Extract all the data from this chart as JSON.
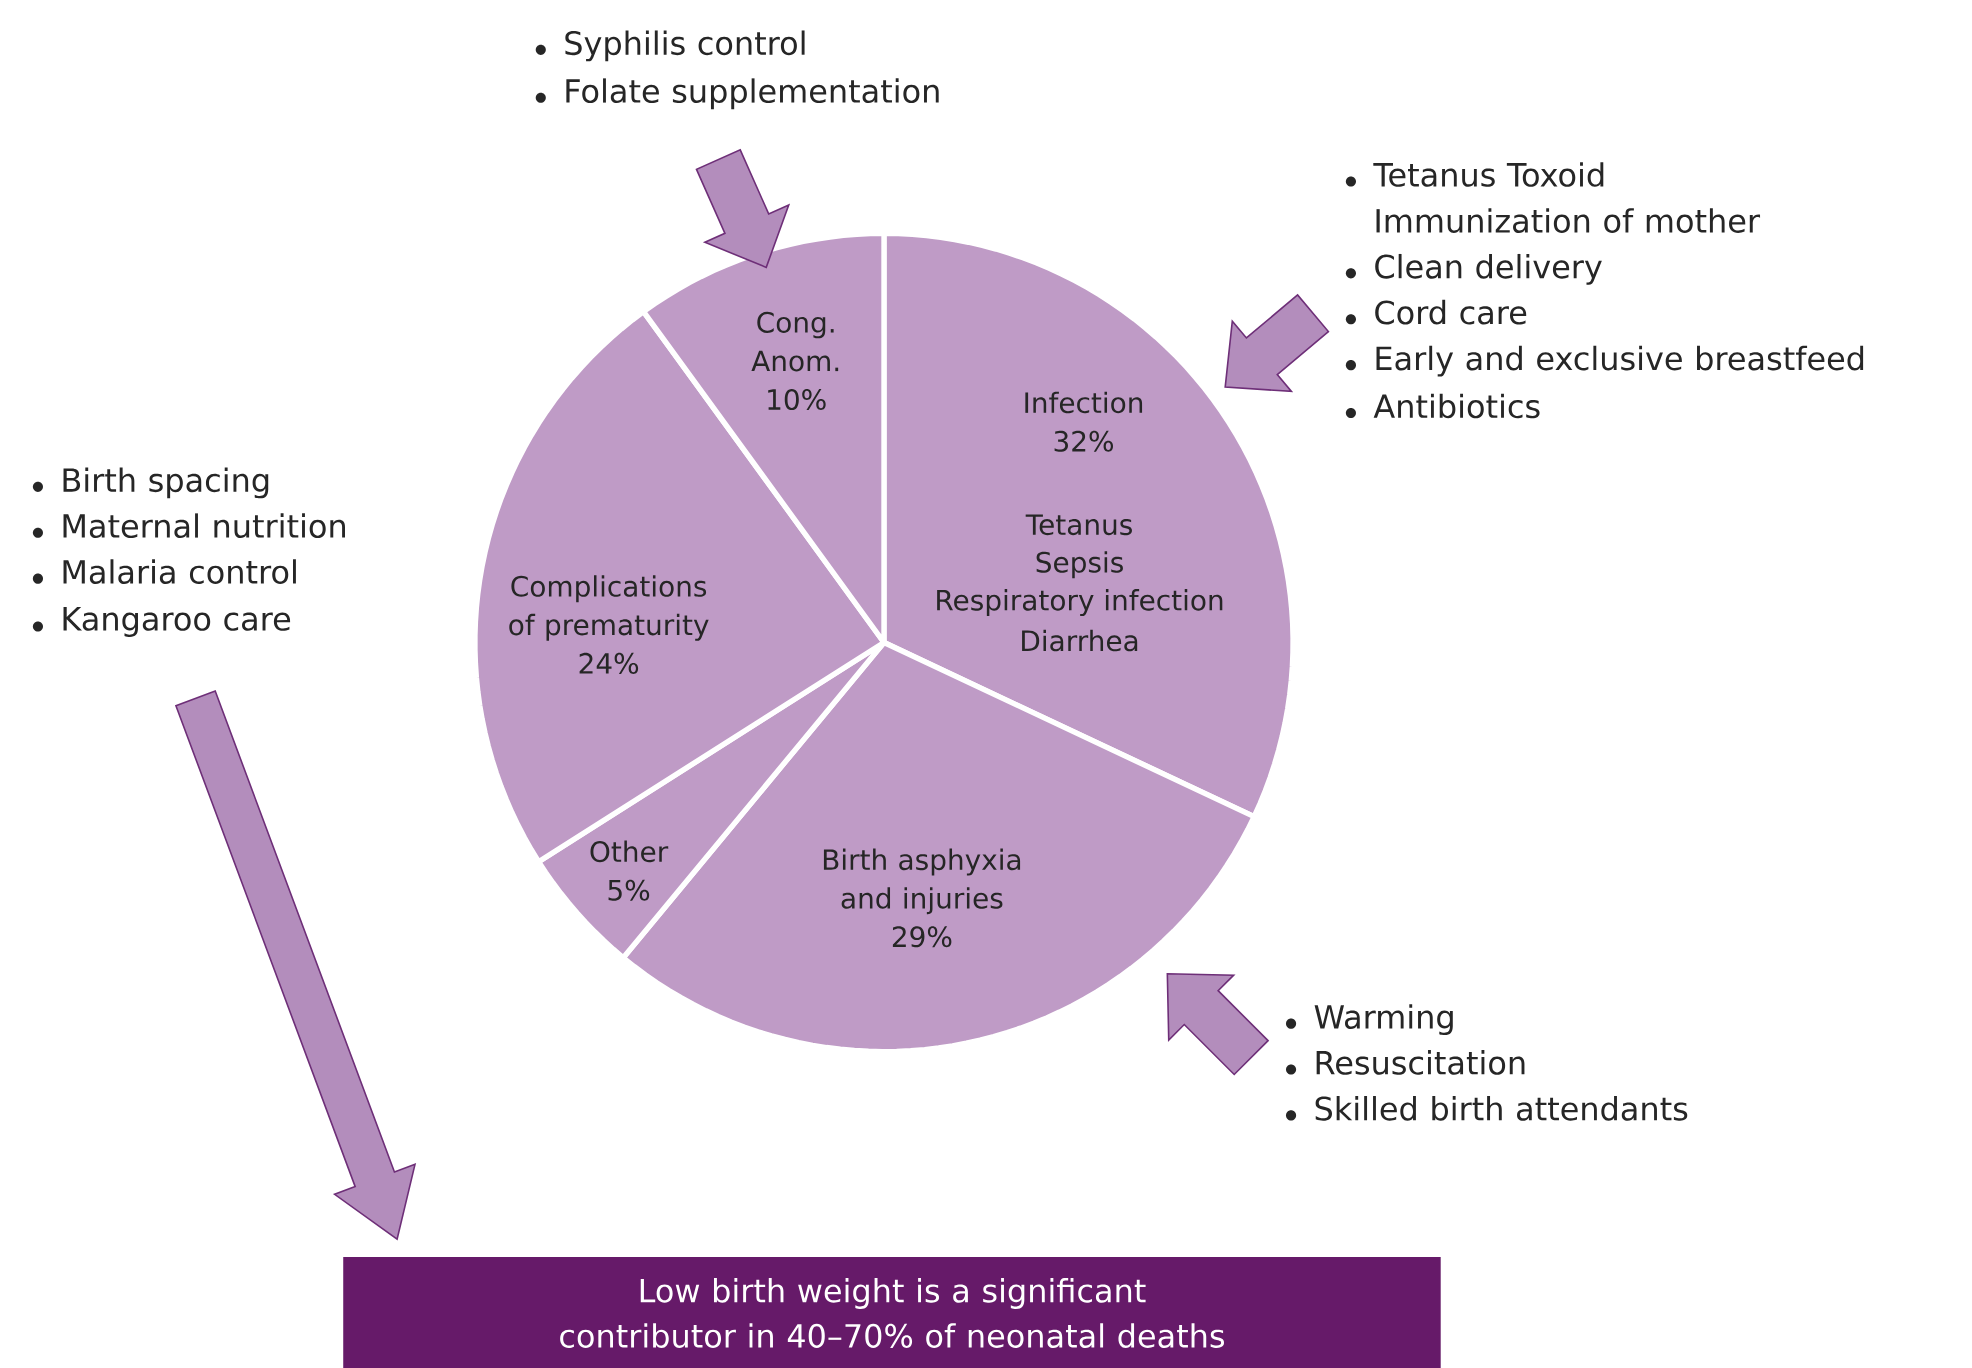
{
  "chart_data": {
    "type": "pie",
    "categories": [
      "Infection",
      "Birth asphyxia and injuries",
      "Other",
      "Complications of prematurity",
      "Cong. Anom."
    ],
    "values": [
      32,
      29,
      5,
      24,
      10
    ],
    "value_labels": [
      "32%",
      "29%",
      "5%",
      "24%",
      "10%"
    ],
    "colors": [
      "#bf9bc6",
      "#bf9bc6",
      "#bf9bc6",
      "#bf9bc6",
      "#bf9bc6"
    ],
    "annotations": [
      "Tetanus",
      "Sepsis",
      "Respiratory infection",
      "Diarrhea",
      "Syphilis control",
      "Folate supplementation",
      "Tetanus Toxoid Immunization of mother",
      "Clean delivery",
      "Cord care",
      "Early and exclusive breastfeed",
      "Antibiotics",
      "Birth spacing",
      "Maternal nutrition",
      "Malaria control",
      "Kangaroo care",
      "Warming",
      "Resuscitation",
      "Skilled birth attendants",
      "Low birth weight is a significant contributor in 40–70% of neonatal deaths"
    ]
  }
}
